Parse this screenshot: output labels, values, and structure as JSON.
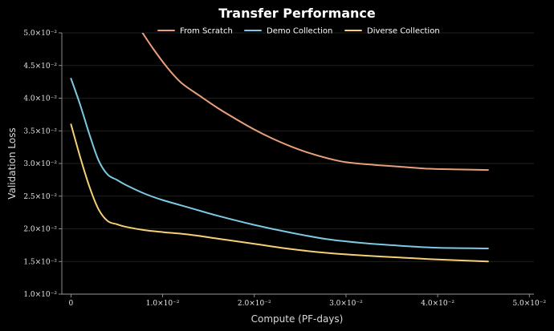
{
  "chart_data": {
    "type": "line",
    "title": "Transfer Performance",
    "xlabel": "Compute (PF-days)",
    "ylabel": "Validation Loss",
    "xlim": [
      -0.001,
      0.0505
    ],
    "ylim": [
      0.01,
      0.05
    ],
    "grid": true,
    "legend_position": "top-center",
    "x_ticks": [
      {
        "value": 0,
        "label": "0"
      },
      {
        "value": 0.01,
        "label": "1.0×10⁻²"
      },
      {
        "value": 0.02,
        "label": "2.0×10⁻²"
      },
      {
        "value": 0.03,
        "label": "3.0×10⁻²"
      },
      {
        "value": 0.04,
        "label": "4.0×10⁻²"
      },
      {
        "value": 0.05,
        "label": "5.0×10⁻²"
      }
    ],
    "y_ticks": [
      {
        "value": 0.01,
        "label": "1.0×10⁻²"
      },
      {
        "value": 0.015,
        "label": "1.5×10⁻²"
      },
      {
        "value": 0.02,
        "label": "2.0×10⁻²"
      },
      {
        "value": 0.025,
        "label": "2.5×10⁻²"
      },
      {
        "value": 0.03,
        "label": "3.0×10⁻²"
      },
      {
        "value": 0.035,
        "label": "3.5×10⁻²"
      },
      {
        "value": 0.04,
        "label": "4.0×10⁻²"
      },
      {
        "value": 0.045,
        "label": "4.5×10⁻²"
      },
      {
        "value": 0.05,
        "label": "5.0×10⁻²"
      }
    ],
    "series": [
      {
        "name": "From Scratch",
        "color": "#E8A07A",
        "x": [
          0.0078,
          0.009,
          0.0105,
          0.012,
          0.014,
          0.016,
          0.018,
          0.02,
          0.022,
          0.024,
          0.026,
          0.028,
          0.03,
          0.033,
          0.036,
          0.039,
          0.042,
          0.0455
        ],
        "y": [
          0.05,
          0.0475,
          0.0447,
          0.0424,
          0.0404,
          0.0385,
          0.0368,
          0.0352,
          0.0338,
          0.0326,
          0.0316,
          0.0308,
          0.0302,
          0.0298,
          0.0295,
          0.0292,
          0.0291,
          0.029
        ]
      },
      {
        "name": "Demo Collection",
        "color": "#7EC8E3",
        "x": [
          0,
          0.001,
          0.002,
          0.003,
          0.004,
          0.005,
          0.006,
          0.008,
          0.01,
          0.013,
          0.016,
          0.02,
          0.024,
          0.028,
          0.032,
          0.036,
          0.04,
          0.0455
        ],
        "y": [
          0.043,
          0.039,
          0.0345,
          0.0305,
          0.0283,
          0.0275,
          0.0267,
          0.0254,
          0.0244,
          0.0232,
          0.022,
          0.0206,
          0.0194,
          0.0184,
          0.0178,
          0.0174,
          0.0171,
          0.017
        ]
      },
      {
        "name": "Diverse Collection",
        "color": "#F5D076",
        "x": [
          0,
          0.001,
          0.002,
          0.003,
          0.004,
          0.005,
          0.006,
          0.008,
          0.01,
          0.013,
          0.016,
          0.02,
          0.024,
          0.028,
          0.032,
          0.036,
          0.04,
          0.0455
        ],
        "y": [
          0.036,
          0.031,
          0.0265,
          0.023,
          0.0212,
          0.0207,
          0.0203,
          0.0198,
          0.0195,
          0.0191,
          0.0185,
          0.0177,
          0.0169,
          0.0163,
          0.0159,
          0.0156,
          0.0153,
          0.015
        ]
      }
    ]
  }
}
